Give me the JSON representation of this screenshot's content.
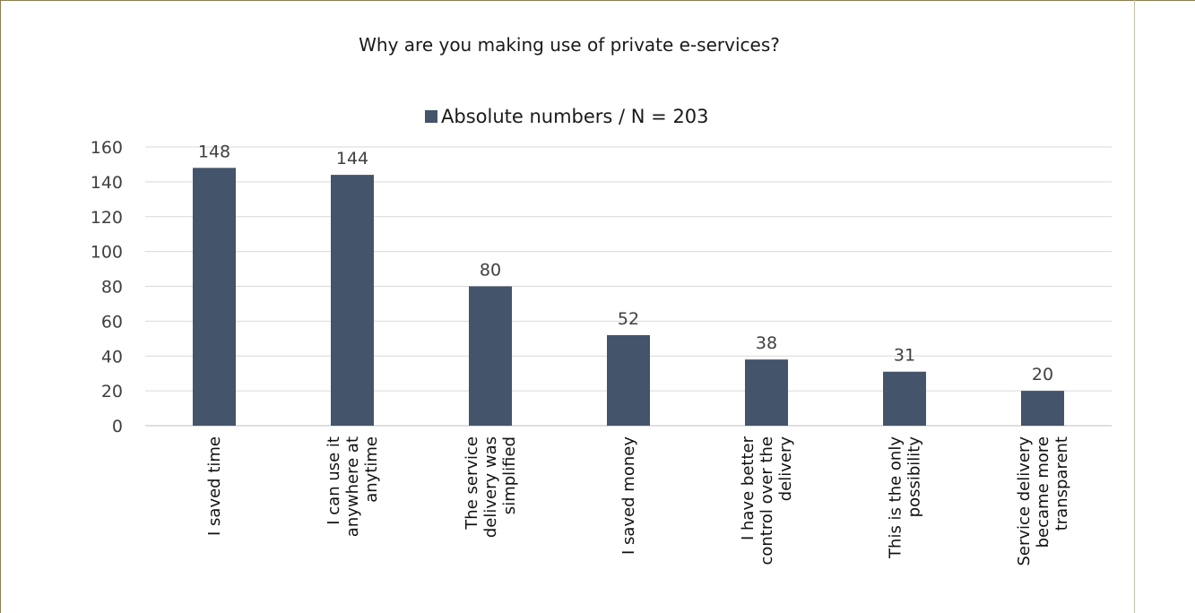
{
  "chart_data": {
    "type": "bar",
    "title": "Why are you making use of private e-services?",
    "categories": [
      [
        "I saved time"
      ],
      [
        "I can use it",
        "anywhere at",
        "anytime"
      ],
      [
        "The service",
        "delivery was",
        "simplified"
      ],
      [
        "I saved money"
      ],
      [
        "I have better",
        "control over the",
        "delivery"
      ],
      [
        "This is the only",
        "possibility"
      ],
      [
        "Service delivery",
        "became more",
        "transparent"
      ]
    ],
    "series": [
      {
        "name": "Absolute numbers / N  =  203",
        "values": [
          148,
          144,
          80,
          52,
          38,
          31,
          20
        ],
        "color": "#44546a"
      }
    ],
    "yticks": [
      0,
      20,
      40,
      60,
      80,
      100,
      120,
      140,
      160
    ],
    "ylim": [
      0,
      160
    ],
    "grid": true,
    "legend_position": "top"
  }
}
